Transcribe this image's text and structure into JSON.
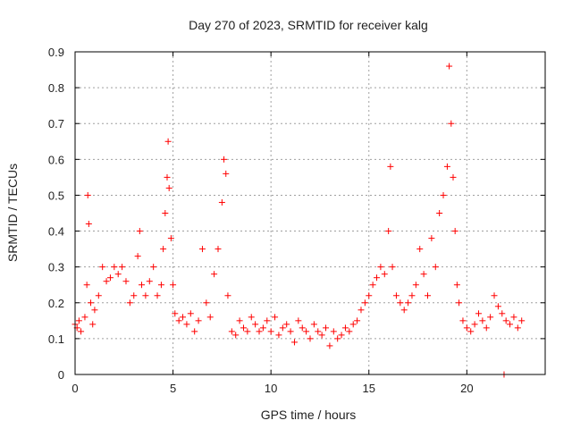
{
  "chart_data": {
    "type": "scatter",
    "title": "Day 270 of 2023, SRMTID for receiver kalg",
    "xlabel": "GPS time / hours",
    "ylabel": "SRMTID / TECUs",
    "xlim": [
      0,
      24
    ],
    "ylim": [
      0,
      0.9
    ],
    "xticks": [
      0,
      5,
      10,
      15,
      20
    ],
    "yticks": [
      0,
      0.1,
      0.2,
      0.3,
      0.4,
      0.5,
      0.6,
      0.7,
      0.8,
      0.9
    ],
    "xtick_labels": [
      "0",
      "5",
      "10",
      "15",
      "20"
    ],
    "ytick_labels": [
      "0",
      "0.1",
      "0.2",
      "0.3",
      "0.4",
      "0.5",
      "0.6",
      "0.7",
      "0.8",
      "0.9"
    ],
    "grid": true,
    "marker": "+",
    "color": "#ff0000",
    "series": [
      {
        "name": "SRMTID",
        "x": [
          0.0,
          0.1,
          0.2,
          0.3,
          0.5,
          0.6,
          0.65,
          0.7,
          0.8,
          0.9,
          1.0,
          1.2,
          1.4,
          1.6,
          1.8,
          2.0,
          2.2,
          2.4,
          2.6,
          2.8,
          3.0,
          3.2,
          3.3,
          3.4,
          3.6,
          3.8,
          4.0,
          4.2,
          4.4,
          4.5,
          4.6,
          4.7,
          4.75,
          4.8,
          4.9,
          5.0,
          5.1,
          5.3,
          5.5,
          5.7,
          5.9,
          6.1,
          6.3,
          6.5,
          6.7,
          6.9,
          7.1,
          7.3,
          7.5,
          7.6,
          7.7,
          7.8,
          8.0,
          8.2,
          8.4,
          8.6,
          8.8,
          9.0,
          9.2,
          9.4,
          9.6,
          9.8,
          10.0,
          10.2,
          10.4,
          10.6,
          10.8,
          11.0,
          11.2,
          11.4,
          11.6,
          11.8,
          12.0,
          12.2,
          12.4,
          12.6,
          12.8,
          13.0,
          13.2,
          13.4,
          13.6,
          13.8,
          14.0,
          14.2,
          14.4,
          14.6,
          14.8,
          15.0,
          15.2,
          15.4,
          15.6,
          15.8,
          16.0,
          16.1,
          16.2,
          16.4,
          16.6,
          16.8,
          17.0,
          17.2,
          17.4,
          17.6,
          17.8,
          18.0,
          18.2,
          18.4,
          18.6,
          18.8,
          19.0,
          19.1,
          19.2,
          19.3,
          19.4,
          19.5,
          19.6,
          19.8,
          20.0,
          20.2,
          20.4,
          20.6,
          20.8,
          21.0,
          21.2,
          21.4,
          21.6,
          21.8,
          21.9,
          22.0,
          22.2,
          22.4,
          22.6,
          22.8
        ],
        "y": [
          0.14,
          0.13,
          0.15,
          0.12,
          0.16,
          0.25,
          0.5,
          0.42,
          0.2,
          0.14,
          0.18,
          0.22,
          0.3,
          0.26,
          0.27,
          0.3,
          0.28,
          0.3,
          0.26,
          0.2,
          0.22,
          0.33,
          0.4,
          0.25,
          0.22,
          0.26,
          0.3,
          0.22,
          0.25,
          0.35,
          0.45,
          0.55,
          0.65,
          0.52,
          0.38,
          0.25,
          0.17,
          0.15,
          0.16,
          0.14,
          0.17,
          0.12,
          0.15,
          0.35,
          0.2,
          0.16,
          0.28,
          0.35,
          0.48,
          0.6,
          0.56,
          0.22,
          0.12,
          0.11,
          0.15,
          0.13,
          0.12,
          0.16,
          0.14,
          0.12,
          0.13,
          0.15,
          0.12,
          0.16,
          0.11,
          0.13,
          0.14,
          0.12,
          0.09,
          0.15,
          0.13,
          0.12,
          0.1,
          0.14,
          0.12,
          0.11,
          0.13,
          0.08,
          0.12,
          0.1,
          0.11,
          0.13,
          0.12,
          0.14,
          0.15,
          0.18,
          0.2,
          0.22,
          0.25,
          0.27,
          0.3,
          0.28,
          0.4,
          0.58,
          0.3,
          0.22,
          0.2,
          0.18,
          0.2,
          0.22,
          0.25,
          0.35,
          0.28,
          0.22,
          0.38,
          0.3,
          0.45,
          0.5,
          0.58,
          0.86,
          0.7,
          0.55,
          0.4,
          0.25,
          0.2,
          0.15,
          0.13,
          0.12,
          0.14,
          0.17,
          0.15,
          0.13,
          0.16,
          0.22,
          0.19,
          0.17,
          0.0,
          0.15,
          0.14,
          0.16,
          0.13,
          0.15
        ]
      }
    ]
  }
}
